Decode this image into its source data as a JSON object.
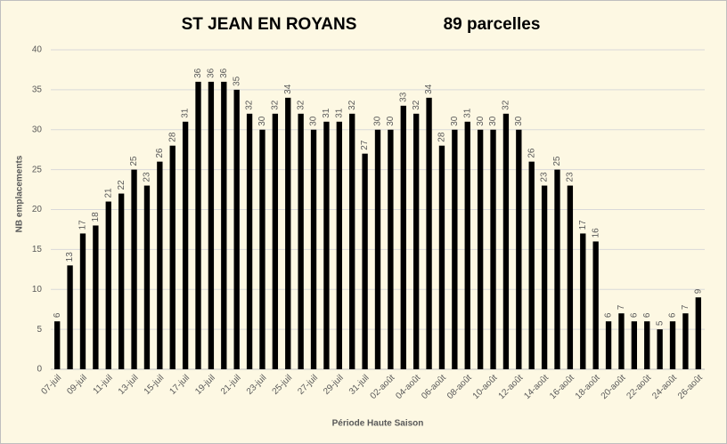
{
  "chart_data": {
    "type": "bar",
    "title": "ST JEAN EN ROYANS",
    "subtitle": "89 parcelles",
    "x_label": "Période Haute Saison",
    "y_label": "NB emplacements",
    "categories": [
      "07-juil",
      null,
      "09-juil",
      null,
      "11-juil",
      null,
      "13-juil",
      null,
      "15-juil",
      null,
      "17-juil",
      null,
      "19-juil",
      null,
      "21-juil",
      null,
      "23-juil",
      null,
      "25-juil",
      null,
      "27-juil",
      null,
      "29-juil",
      null,
      "31-juil",
      null,
      "02-août",
      null,
      "04-août",
      null,
      "06-août",
      null,
      "08-août",
      null,
      "10-août",
      null,
      "12-août",
      null,
      "14-août",
      null,
      "16-août",
      null,
      "18-août",
      null,
      "20-août",
      null,
      "22-août",
      null,
      "24-août",
      null,
      "26-août"
    ],
    "values": [
      6,
      13,
      17,
      18,
      21,
      22,
      25,
      23,
      26,
      28,
      31,
      36,
      36,
      36,
      35,
      32,
      30,
      32,
      34,
      32,
      30,
      31,
      31,
      32,
      27,
      30,
      30,
      33,
      32,
      34,
      28,
      30,
      31,
      30,
      30,
      32,
      30,
      26,
      23,
      25,
      23,
      17,
      16,
      6,
      7,
      6,
      6,
      5,
      6,
      7,
      9
    ],
    "color": "#000000",
    "ylim": [
      0,
      40
    ],
    "yticks": [
      0,
      5,
      10,
      15,
      20,
      25,
      30,
      35,
      40
    ],
    "grid": true
  }
}
